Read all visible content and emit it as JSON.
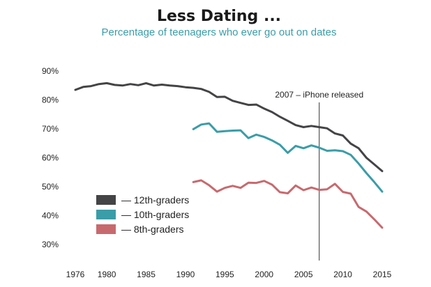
{
  "chart_data": {
    "type": "line",
    "title": "Less Dating ...",
    "subtitle": "Percentage of teenagers who ever go out on dates",
    "xlabel": "",
    "ylabel": "",
    "xlim": [
      1974,
      2016
    ],
    "ylim": [
      27,
      92
    ],
    "yticks": [
      90,
      80,
      70,
      60,
      50,
      40,
      30
    ],
    "ytick_labels": [
      "90%",
      "80%",
      "70%",
      "60%",
      "50%",
      "40%",
      "30%"
    ],
    "xticks": [
      1976,
      1980,
      1985,
      1990,
      1995,
      2000,
      2005,
      2010,
      2015
    ],
    "xtick_labels": [
      "1976",
      "1980",
      "1985",
      "1990",
      "1995",
      "2000",
      "2005",
      "2010",
      "2015"
    ],
    "grid": false,
    "legend_position": "bottom-left",
    "annotation": {
      "x": 2007,
      "label": "2007 – iPhone released"
    },
    "series": [
      {
        "name": "— 12th-graders",
        "color": "#444446",
        "x": [
          1976,
          1977,
          1978,
          1979,
          1980,
          1981,
          1982,
          1983,
          1984,
          1985,
          1986,
          1987,
          1988,
          1989,
          1990,
          1991,
          1992,
          1993,
          1994,
          1995,
          1996,
          1997,
          1998,
          1999,
          2000,
          2001,
          2002,
          2003,
          2004,
          2005,
          2006,
          2007,
          2008,
          2009,
          2010,
          2011,
          2012,
          2013,
          2014,
          2015
        ],
        "values": [
          83.5,
          84.5,
          84.8,
          85.5,
          85.8,
          85.2,
          85.0,
          85.5,
          85.1,
          85.8,
          85.0,
          85.3,
          85.0,
          84.8,
          84.4,
          84.2,
          83.8,
          82.8,
          81.0,
          81.1,
          79.7,
          79.0,
          78.3,
          78.4,
          77.0,
          75.8,
          74.2,
          72.8,
          71.3,
          70.6,
          71.0,
          70.6,
          70.2,
          68.4,
          67.7,
          64.9,
          63.3,
          60.0,
          57.7,
          55.4
        ]
      },
      {
        "name": "— 10th-graders",
        "color": "#3a9da8",
        "x": [
          1991,
          1992,
          1993,
          1994,
          1995,
          1996,
          1997,
          1998,
          1999,
          2000,
          2001,
          2002,
          2003,
          2004,
          2005,
          2006,
          2007,
          2008,
          2009,
          2010,
          2011,
          2012,
          2013,
          2014,
          2015
        ],
        "values": [
          69.9,
          71.5,
          71.9,
          69.0,
          69.2,
          69.4,
          69.5,
          66.8,
          68.0,
          67.2,
          66.0,
          64.5,
          61.7,
          64.1,
          63.3,
          64.3,
          63.5,
          62.4,
          62.6,
          62.3,
          61.0,
          58.0,
          54.7,
          51.6,
          48.3
        ]
      },
      {
        "name": "— 8th-graders",
        "color": "#c76a6e",
        "x": [
          1991,
          1992,
          1993,
          1994,
          1995,
          1996,
          1997,
          1998,
          1999,
          2000,
          2001,
          2002,
          2003,
          2004,
          2005,
          2006,
          2007,
          2008,
          2009,
          2010,
          2011,
          2012,
          2013,
          2014,
          2015
        ],
        "values": [
          51.6,
          52.2,
          50.5,
          48.3,
          49.6,
          50.3,
          49.6,
          51.4,
          51.3,
          52.0,
          50.7,
          48.1,
          47.7,
          50.4,
          48.8,
          49.7,
          48.9,
          49.1,
          51.0,
          48.2,
          47.6,
          43.0,
          41.4,
          38.7,
          35.8
        ]
      }
    ]
  }
}
